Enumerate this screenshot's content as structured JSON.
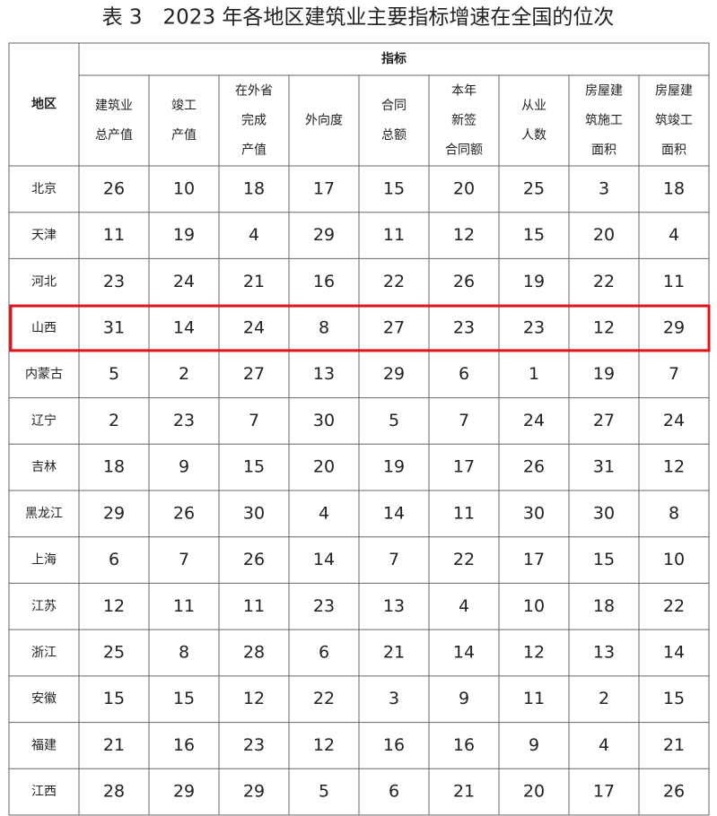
{
  "title": "表 3　2023 年各地区建筑业主要指标增速在全国的位次",
  "table": {
    "region_header": "地区",
    "group_header": "指标",
    "columns": [
      [
        "建筑业",
        "总产值"
      ],
      [
        "竣工",
        "产值"
      ],
      [
        "在外省",
        "完成",
        "产值"
      ],
      [
        "外向度"
      ],
      [
        "合同",
        "总额"
      ],
      [
        "本年",
        "新签",
        "合同额"
      ],
      [
        "从业",
        "人数"
      ],
      [
        "房屋建",
        "筑施工",
        "面积"
      ],
      [
        "房屋建",
        "筑竣工",
        "面积"
      ]
    ],
    "rows": [
      {
        "region": "北京",
        "values": [
          26,
          10,
          18,
          17,
          15,
          20,
          25,
          3,
          18
        ]
      },
      {
        "region": "天津",
        "values": [
          11,
          19,
          4,
          29,
          11,
          12,
          15,
          20,
          4
        ]
      },
      {
        "region": "河北",
        "values": [
          23,
          24,
          21,
          16,
          22,
          26,
          19,
          22,
          11
        ]
      },
      {
        "region": "山西",
        "values": [
          31,
          14,
          24,
          8,
          27,
          23,
          23,
          12,
          29
        ]
      },
      {
        "region": "内蒙古",
        "values": [
          5,
          2,
          27,
          13,
          29,
          6,
          1,
          19,
          7
        ]
      },
      {
        "region": "辽宁",
        "values": [
          2,
          23,
          7,
          30,
          5,
          7,
          24,
          27,
          24
        ]
      },
      {
        "region": "吉林",
        "values": [
          18,
          9,
          15,
          20,
          19,
          17,
          26,
          31,
          12
        ]
      },
      {
        "region": "黑龙江",
        "values": [
          29,
          26,
          30,
          4,
          14,
          11,
          30,
          30,
          8
        ]
      },
      {
        "region": "上海",
        "values": [
          6,
          7,
          26,
          14,
          7,
          22,
          17,
          15,
          10
        ]
      },
      {
        "region": "江苏",
        "values": [
          12,
          11,
          11,
          23,
          13,
          4,
          10,
          18,
          22
        ]
      },
      {
        "region": "浙江",
        "values": [
          25,
          8,
          28,
          6,
          21,
          14,
          12,
          13,
          14
        ]
      },
      {
        "region": "安徽",
        "values": [
          15,
          15,
          12,
          22,
          3,
          9,
          11,
          2,
          15
        ]
      },
      {
        "region": "福建",
        "values": [
          21,
          16,
          23,
          12,
          16,
          16,
          9,
          4,
          21
        ]
      },
      {
        "region": "江西",
        "values": [
          28,
          29,
          29,
          5,
          6,
          21,
          20,
          17,
          26
        ]
      }
    ]
  }
}
